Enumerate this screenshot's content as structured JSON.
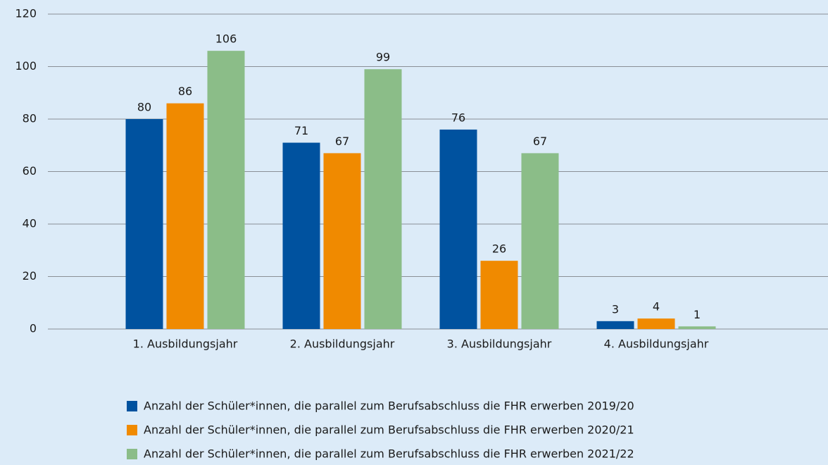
{
  "chart_data": {
    "type": "bar",
    "categories": [
      "1. Ausbildungsjahr",
      "2. Ausbildungsjahr",
      "3. Ausbildungsjahr",
      "4. Ausbildungsjahr"
    ],
    "series": [
      {
        "name": "Anzahl der Schüler*innen, die parallel zum Berufsabschluss die FHR erwerben 2019/20",
        "color": "#00529f",
        "values": [
          80,
          71,
          76,
          3
        ]
      },
      {
        "name": "Anzahl der Schüler*innen, die parallel zum Berufsabschluss die FHR erwerben 2020/21",
        "color": "#f08a00",
        "values": [
          86,
          67,
          26,
          4
        ]
      },
      {
        "name": "Anzahl der Schüler*innen, die parallel zum Berufsabschluss die FHR erwerben 2021/22",
        "color": "#8bbd88",
        "values": [
          106,
          99,
          67,
          1
        ]
      }
    ],
    "ylim": [
      0,
      120
    ],
    "yticks": [
      0,
      20,
      40,
      60,
      80,
      100,
      120
    ],
    "grid": true
  }
}
